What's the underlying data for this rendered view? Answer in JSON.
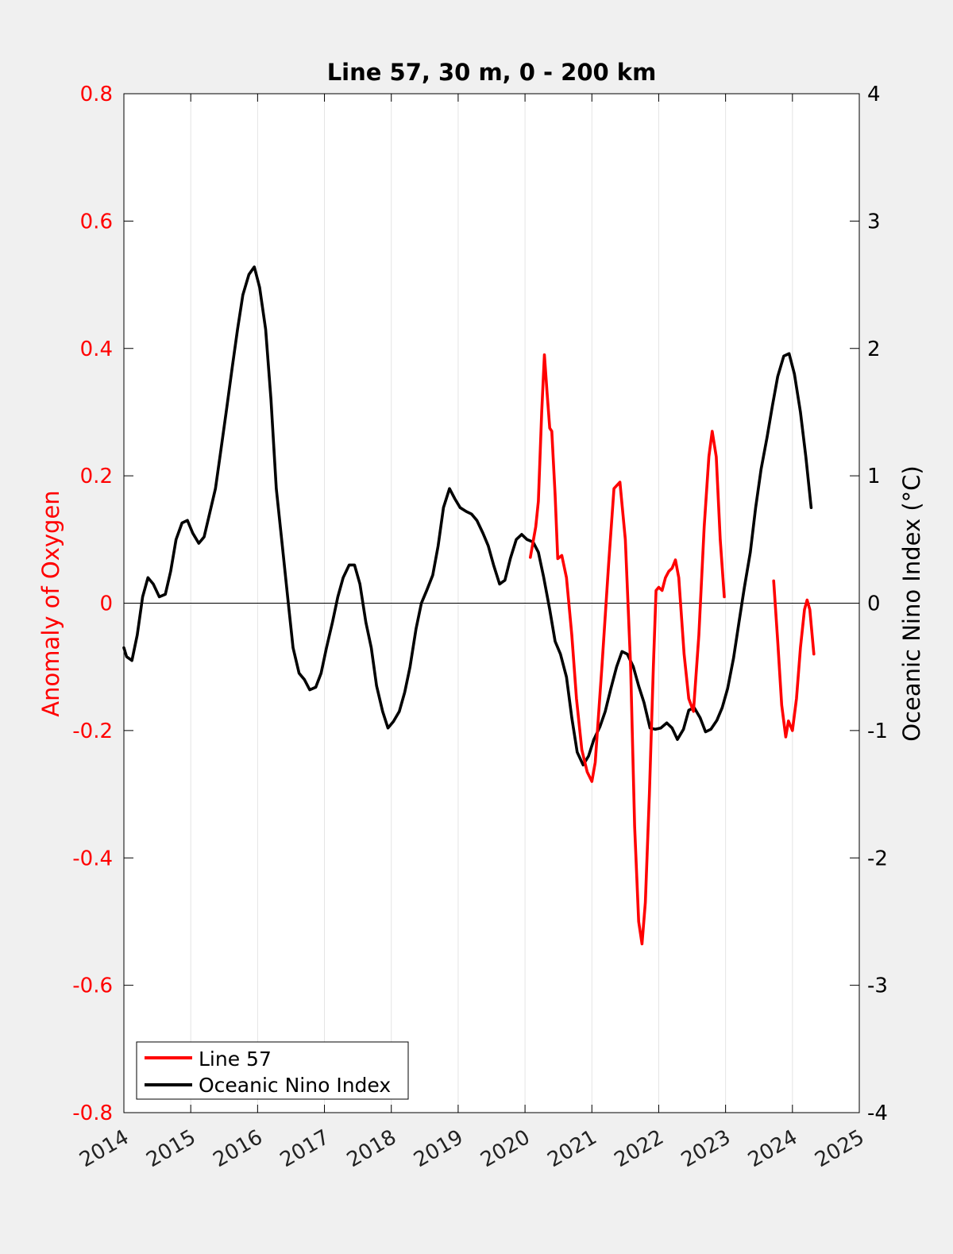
{
  "chart_data": {
    "type": "line",
    "title": "Line 57, 30 m, 0 - 200 km",
    "xlabel": "",
    "ylabel_left": "Anomaly of Oxygen",
    "ylabel_right": "Oceanic Nino Index (°C)",
    "xlim": [
      2014,
      2025
    ],
    "ylim_left": [
      -0.8,
      0.8
    ],
    "ylim_right": [
      -4,
      4
    ],
    "x_ticks": [
      "2014",
      "2015",
      "2016",
      "2017",
      "2018",
      "2019",
      "2020",
      "2021",
      "2022",
      "2023",
      "2024",
      "2025"
    ],
    "y_ticks_left": [
      "0.8",
      "0.6",
      "0.4",
      "0.2",
      "0",
      "-0.2",
      "-0.4",
      "-0.6",
      "-0.8"
    ],
    "y_ticks_right": [
      "4",
      "3",
      "2",
      "1",
      "0",
      "-1",
      "-2",
      "-3",
      "-4"
    ],
    "grid": "vertical",
    "zero_line": true,
    "legend": "bottom-left",
    "series": [
      {
        "name": "Line 57",
        "axis": "left",
        "color": "#ff0000",
        "segments": [
          [
            [
              2020.08,
              0.072
            ],
            [
              2020.16,
              0.12
            ],
            [
              2020.2,
              0.16
            ],
            [
              2020.25,
              0.3
            ],
            [
              2020.29,
              0.39
            ],
            [
              2020.33,
              0.33
            ],
            [
              2020.37,
              0.275
            ],
            [
              2020.4,
              0.27
            ],
            [
              2020.45,
              0.17
            ],
            [
              2020.49,
              0.07
            ],
            [
              2020.55,
              0.075
            ],
            [
              2020.62,
              0.04
            ],
            [
              2020.7,
              -0.05
            ],
            [
              2020.77,
              -0.15
            ],
            [
              2020.85,
              -0.23
            ],
            [
              2020.93,
              -0.265
            ],
            [
              2021.0,
              -0.28
            ],
            [
              2021.05,
              -0.25
            ],
            [
              2021.15,
              -0.1
            ],
            [
              2021.25,
              0.06
            ],
            [
              2021.33,
              0.18
            ],
            [
              2021.42,
              0.19
            ],
            [
              2021.5,
              0.1
            ],
            [
              2021.58,
              -0.1
            ],
            [
              2021.64,
              -0.35
            ],
            [
              2021.7,
              -0.5
            ],
            [
              2021.75,
              -0.535
            ],
            [
              2021.8,
              -0.47
            ],
            [
              2021.86,
              -0.3
            ],
            [
              2021.92,
              -0.1
            ],
            [
              2021.96,
              0.02
            ],
            [
              2022.0,
              0.025
            ],
            [
              2022.05,
              0.02
            ],
            [
              2022.1,
              0.04
            ],
            [
              2022.15,
              0.05
            ],
            [
              2022.2,
              0.055
            ],
            [
              2022.25,
              0.068
            ],
            [
              2022.3,
              0.04
            ],
            [
              2022.38,
              -0.08
            ],
            [
              2022.45,
              -0.15
            ],
            [
              2022.52,
              -0.17
            ],
            [
              2022.6,
              -0.05
            ],
            [
              2022.68,
              0.12
            ],
            [
              2022.75,
              0.23
            ],
            [
              2022.8,
              0.27
            ],
            [
              2022.86,
              0.23
            ],
            [
              2022.92,
              0.1
            ],
            [
              2022.98,
              0.01
            ]
          ],
          [
            [
              2023.72,
              0.035
            ],
            [
              2023.78,
              -0.06
            ],
            [
              2023.84,
              -0.16
            ],
            [
              2023.9,
              -0.21
            ],
            [
              2023.94,
              -0.185
            ],
            [
              2024.0,
              -0.2
            ],
            [
              2024.06,
              -0.15
            ],
            [
              2024.12,
              -0.07
            ],
            [
              2024.18,
              -0.01
            ],
            [
              2024.22,
              0.005
            ],
            [
              2024.26,
              -0.01
            ],
            [
              2024.32,
              -0.08
            ]
          ]
        ]
      },
      {
        "name": "Oceanic Nino Index",
        "axis": "right",
        "color": "#000000",
        "segments": [
          [
            [
              2014.0,
              -0.35
            ],
            [
              2014.04,
              -0.42
            ],
            [
              2014.12,
              -0.45
            ],
            [
              2014.2,
              -0.25
            ],
            [
              2014.28,
              0.05
            ],
            [
              2014.36,
              0.2
            ],
            [
              2014.44,
              0.15
            ],
            [
              2014.53,
              0.05
            ],
            [
              2014.62,
              0.07
            ],
            [
              2014.7,
              0.25
            ],
            [
              2014.78,
              0.5
            ],
            [
              2014.87,
              0.63
            ],
            [
              2014.95,
              0.65
            ],
            [
              2015.03,
              0.55
            ],
            [
              2015.12,
              0.47
            ],
            [
              2015.2,
              0.52
            ],
            [
              2015.28,
              0.7
            ],
            [
              2015.37,
              0.9
            ],
            [
              2015.45,
              1.2
            ],
            [
              2015.53,
              1.5
            ],
            [
              2015.62,
              1.85
            ],
            [
              2015.7,
              2.15
            ],
            [
              2015.78,
              2.42
            ],
            [
              2015.87,
              2.58
            ],
            [
              2015.95,
              2.64
            ],
            [
              2016.03,
              2.48
            ],
            [
              2016.12,
              2.15
            ],
            [
              2016.2,
              1.6
            ],
            [
              2016.28,
              0.9
            ],
            [
              2016.37,
              0.45
            ],
            [
              2016.45,
              0.05
            ],
            [
              2016.53,
              -0.35
            ],
            [
              2016.62,
              -0.55
            ],
            [
              2016.7,
              -0.6
            ],
            [
              2016.78,
              -0.68
            ],
            [
              2016.87,
              -0.66
            ],
            [
              2016.95,
              -0.55
            ],
            [
              2017.03,
              -0.35
            ],
            [
              2017.12,
              -0.15
            ],
            [
              2017.2,
              0.05
            ],
            [
              2017.28,
              0.2
            ],
            [
              2017.37,
              0.3
            ],
            [
              2017.45,
              0.3
            ],
            [
              2017.53,
              0.15
            ],
            [
              2017.62,
              -0.15
            ],
            [
              2017.7,
              -0.35
            ],
            [
              2017.78,
              -0.65
            ],
            [
              2017.87,
              -0.85
            ],
            [
              2017.95,
              -0.98
            ],
            [
              2018.03,
              -0.93
            ],
            [
              2018.12,
              -0.85
            ],
            [
              2018.2,
              -0.7
            ],
            [
              2018.28,
              -0.5
            ],
            [
              2018.37,
              -0.2
            ],
            [
              2018.45,
              0.0
            ],
            [
              2018.53,
              0.1
            ],
            [
              2018.62,
              0.22
            ],
            [
              2018.7,
              0.45
            ],
            [
              2018.78,
              0.75
            ],
            [
              2018.87,
              0.9
            ],
            [
              2018.95,
              0.82
            ],
            [
              2019.03,
              0.75
            ],
            [
              2019.12,
              0.72
            ],
            [
              2019.2,
              0.7
            ],
            [
              2019.28,
              0.65
            ],
            [
              2019.37,
              0.55
            ],
            [
              2019.45,
              0.45
            ],
            [
              2019.53,
              0.3
            ],
            [
              2019.62,
              0.15
            ],
            [
              2019.7,
              0.18
            ],
            [
              2019.78,
              0.35
            ],
            [
              2019.87,
              0.5
            ],
            [
              2019.95,
              0.54
            ],
            [
              2020.03,
              0.5
            ],
            [
              2020.12,
              0.48
            ],
            [
              2020.2,
              0.4
            ],
            [
              2020.28,
              0.2
            ],
            [
              2020.37,
              -0.05
            ],
            [
              2020.45,
              -0.3
            ],
            [
              2020.53,
              -0.4
            ],
            [
              2020.62,
              -0.58
            ],
            [
              2020.7,
              -0.9
            ],
            [
              2020.78,
              -1.17
            ],
            [
              2020.87,
              -1.27
            ],
            [
              2020.95,
              -1.2
            ],
            [
              2021.03,
              -1.07
            ],
            [
              2021.12,
              -0.97
            ],
            [
              2021.2,
              -0.85
            ],
            [
              2021.28,
              -0.68
            ],
            [
              2021.37,
              -0.5
            ],
            [
              2021.45,
              -0.38
            ],
            [
              2021.53,
              -0.4
            ],
            [
              2021.62,
              -0.5
            ],
            [
              2021.7,
              -0.65
            ],
            [
              2021.78,
              -0.78
            ],
            [
              2021.87,
              -0.98
            ],
            [
              2021.95,
              -0.99
            ],
            [
              2022.03,
              -0.98
            ],
            [
              2022.12,
              -0.94
            ],
            [
              2022.2,
              -0.98
            ],
            [
              2022.28,
              -1.07
            ],
            [
              2022.37,
              -0.99
            ],
            [
              2022.45,
              -0.84
            ],
            [
              2022.53,
              -0.82
            ],
            [
              2022.62,
              -0.9
            ],
            [
              2022.7,
              -1.01
            ],
            [
              2022.78,
              -0.99
            ],
            [
              2022.87,
              -0.92
            ],
            [
              2022.95,
              -0.82
            ],
            [
              2023.03,
              -0.67
            ],
            [
              2023.12,
              -0.43
            ],
            [
              2023.2,
              -0.15
            ],
            [
              2023.28,
              0.12
            ],
            [
              2023.37,
              0.4
            ],
            [
              2023.45,
              0.75
            ],
            [
              2023.53,
              1.05
            ],
            [
              2023.62,
              1.3
            ],
            [
              2023.7,
              1.55
            ],
            [
              2023.78,
              1.78
            ],
            [
              2023.87,
              1.94
            ],
            [
              2023.95,
              1.96
            ],
            [
              2024.03,
              1.8
            ],
            [
              2024.12,
              1.5
            ],
            [
              2024.2,
              1.15
            ],
            [
              2024.28,
              0.75
            ]
          ]
        ]
      }
    ]
  }
}
